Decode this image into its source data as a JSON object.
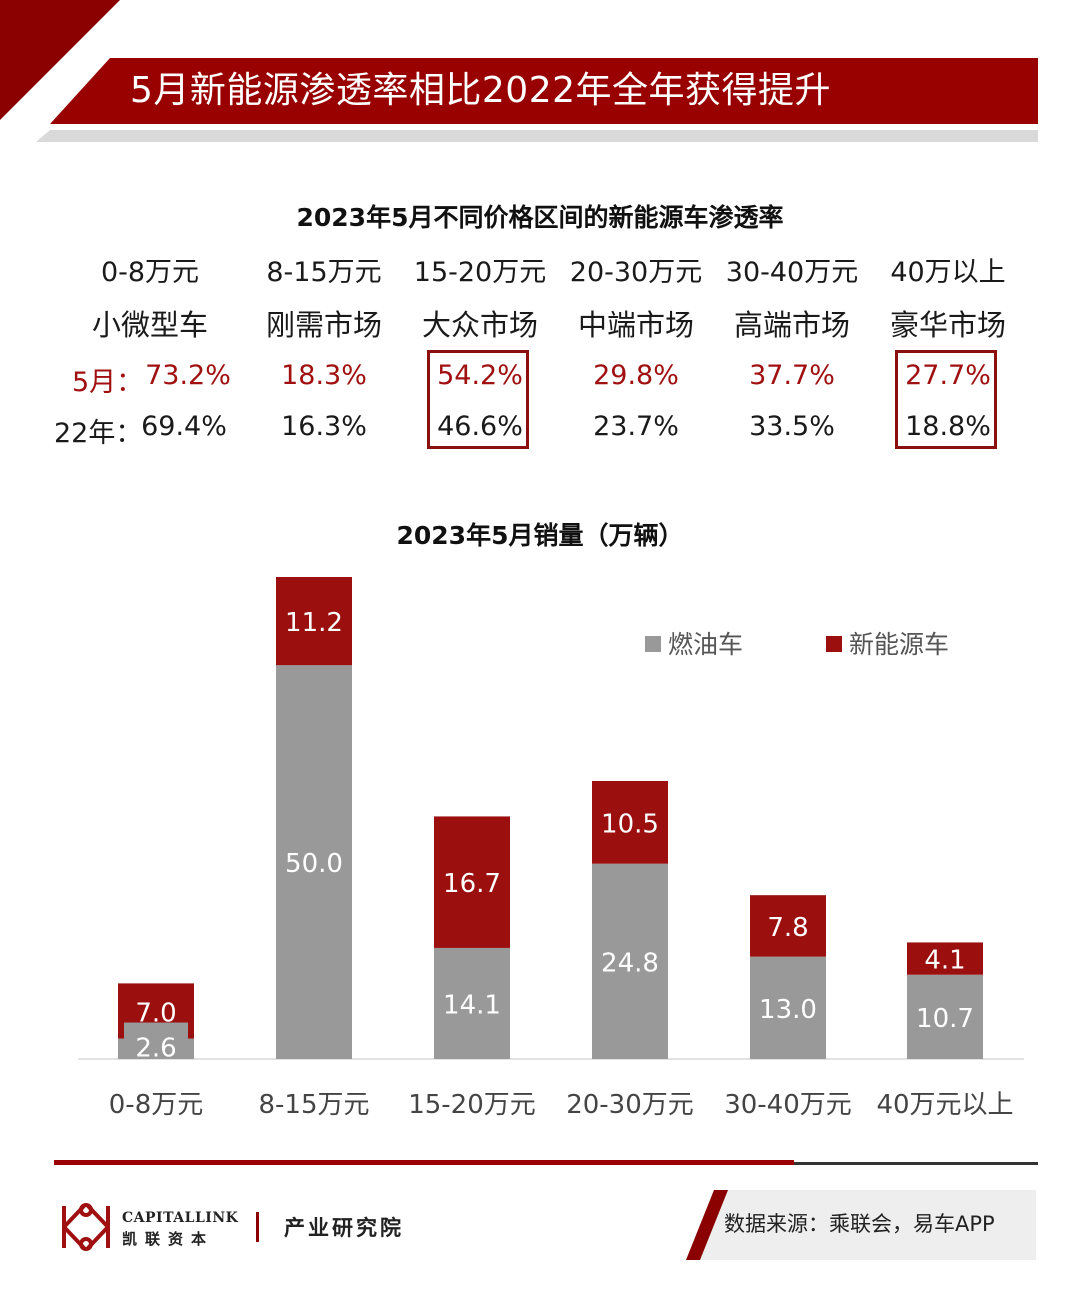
{
  "header": {
    "title": "5月新能源渗透率相比2022年全年获得提升"
  },
  "penetration": {
    "title": "2023年5月不同价格区间的新能源车渗透率",
    "row_label_may": "5月：",
    "row_label_2022": "22年：",
    "columns": [
      {
        "range": "0-8万元",
        "segment": "小微型车",
        "may": "73.2%",
        "y2022": "69.4%",
        "highlight": false
      },
      {
        "range": "8-15万元",
        "segment": "刚需市场",
        "may": "18.3%",
        "y2022": "16.3%",
        "highlight": false
      },
      {
        "range": "15-20万元",
        "segment": "大众市场",
        "may": "54.2%",
        "y2022": "46.6%",
        "highlight": true
      },
      {
        "range": "20-30万元",
        "segment": "中端市场",
        "may": "29.8%",
        "y2022": "23.7%",
        "highlight": false
      },
      {
        "range": "30-40万元",
        "segment": "高端市场",
        "may": "37.7%",
        "y2022": "33.5%",
        "highlight": false
      },
      {
        "range": "40万以上",
        "segment": "豪华市场",
        "may": "27.7%",
        "y2022": "18.8%",
        "highlight": true
      }
    ]
  },
  "chart_data": {
    "type": "bar",
    "stacked": true,
    "title": "2023年5月销量（万辆）",
    "categories": [
      "0-8万元",
      "8-15万元",
      "15-20万元",
      "20-30万元",
      "30-40万元",
      "40万元以上"
    ],
    "series": [
      {
        "name": "燃油车",
        "color": "#999999",
        "values": [
          2.6,
          50.0,
          14.1,
          24.8,
          13.0,
          10.7
        ]
      },
      {
        "name": "新能源车",
        "color": "#9b0f0f",
        "values": [
          7.0,
          11.2,
          16.7,
          10.5,
          7.8,
          4.1
        ]
      }
    ],
    "ylim": [
      0,
      61.2
    ],
    "legend_position": "top-right",
    "data_labels": true
  },
  "footer": {
    "logo_en": "CAPITALLINK",
    "logo_cn": "凯联资本",
    "institute": "产业研究院",
    "source": "数据来源：乘联会，易车APP"
  }
}
